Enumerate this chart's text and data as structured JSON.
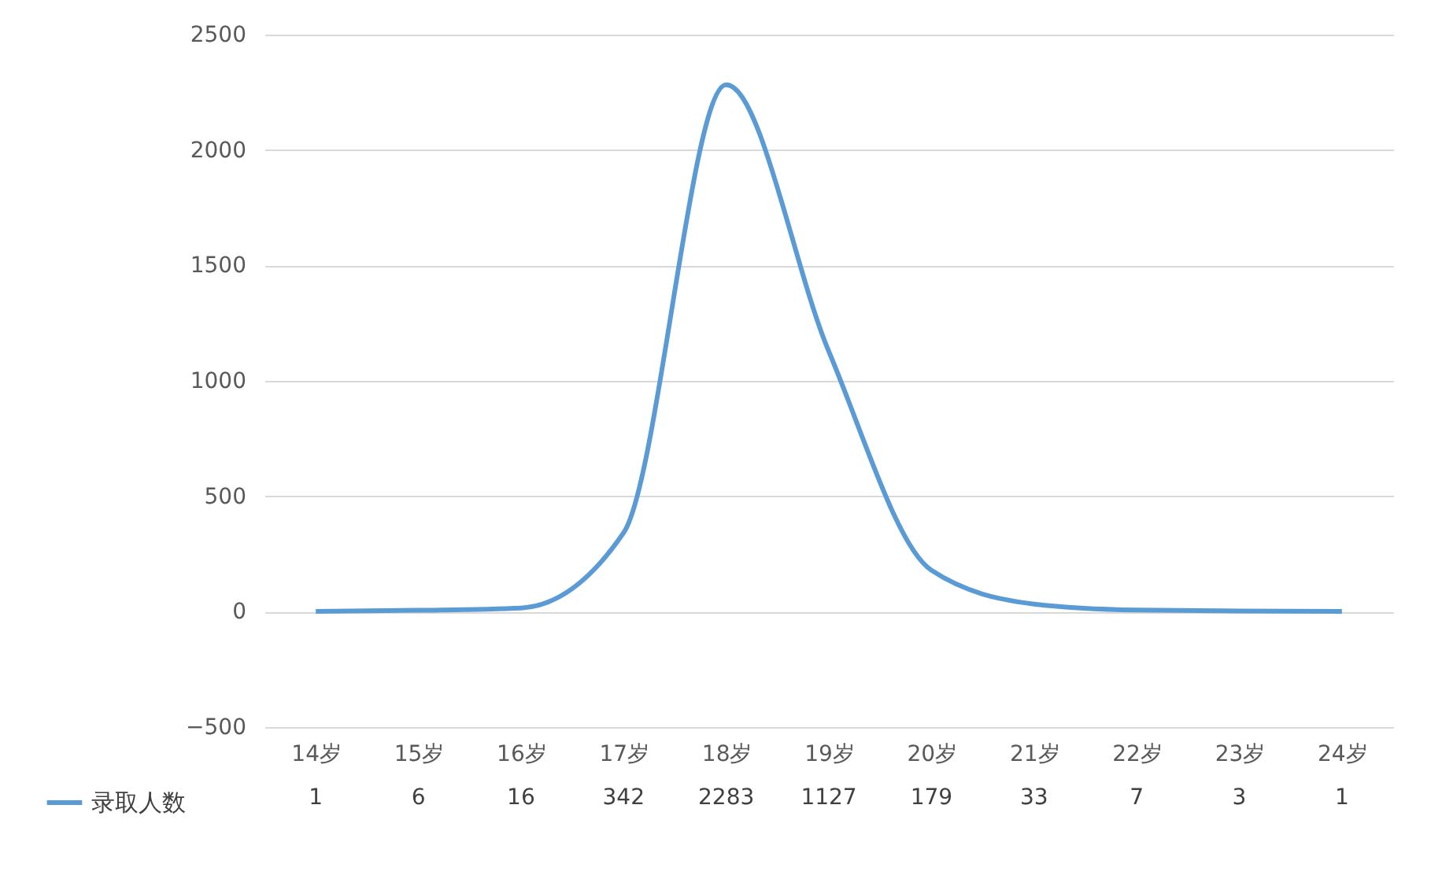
{
  "chart_data": {
    "type": "line",
    "categories": [
      "14岁",
      "15岁",
      "16岁",
      "17岁",
      "18岁",
      "19岁",
      "20岁",
      "21岁",
      "22岁",
      "23岁",
      "24岁"
    ],
    "series": [
      {
        "name": "录取人数",
        "color": "#5b9bd5",
        "values": [
          1,
          6,
          16,
          342,
          2283,
          1127,
          179,
          33,
          7,
          3,
          1
        ]
      }
    ],
    "ylim": [
      -500,
      2500
    ],
    "yticks": [
      -500,
      0,
      500,
      1000,
      1500,
      2000,
      2500
    ],
    "grid": "y",
    "legend": "bottom left",
    "data_labels": true
  }
}
